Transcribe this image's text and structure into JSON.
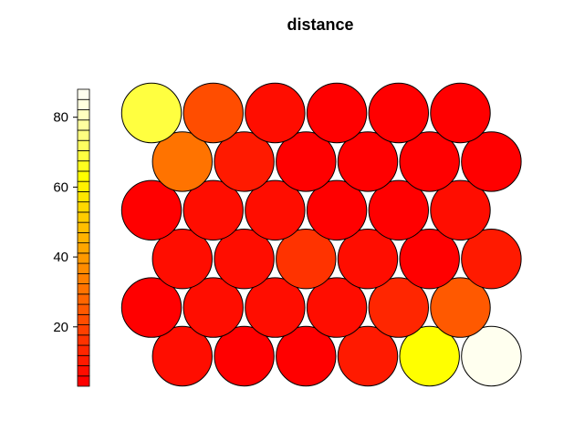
{
  "chart_data": {
    "type": "heatmap",
    "subtype": "som-hexagonal-property-map",
    "title": "distance",
    "xlabel": "",
    "ylabel": "",
    "grid": {
      "columns": 6,
      "rows": 6,
      "topology": "hexagonal"
    },
    "legend": {
      "placement": "left",
      "kind": "color-key",
      "range": [
        3,
        88
      ],
      "ticks": [
        20,
        40,
        60,
        80
      ],
      "tick_labels": [
        "20",
        "40",
        "60",
        "80"
      ],
      "colors": [
        "#FF0000",
        "#FF0D00",
        "#FF1A00",
        "#FF2600",
        "#FF3300",
        "#FF4000",
        "#FF4D00",
        "#FF5900",
        "#FF6600",
        "#FF7300",
        "#FF8000",
        "#FF8C00",
        "#FF9900",
        "#FFA600",
        "#FFB300",
        "#FFBF00",
        "#FFCC00",
        "#FFD900",
        "#FFE600",
        "#FFF200",
        "#FFFF00",
        "#FFFF20",
        "#FFFF40",
        "#FFFF60",
        "#FFFF80",
        "#FFFF9F",
        "#FFFFBF",
        "#FFFFDF",
        "#FFFFEF"
      ]
    },
    "cells": [
      {
        "row": 1,
        "col": 1,
        "value": 8
      },
      {
        "row": 1,
        "col": 2,
        "value": 5
      },
      {
        "row": 1,
        "col": 3,
        "value": 5
      },
      {
        "row": 1,
        "col": 4,
        "value": 10
      },
      {
        "row": 1,
        "col": 5,
        "value": 64
      },
      {
        "row": 1,
        "col": 6,
        "value": 88
      },
      {
        "row": 2,
        "col": 1,
        "value": 5
      },
      {
        "row": 2,
        "col": 2,
        "value": 6
      },
      {
        "row": 2,
        "col": 3,
        "value": 6
      },
      {
        "row": 2,
        "col": 4,
        "value": 8
      },
      {
        "row": 2,
        "col": 5,
        "value": 12
      },
      {
        "row": 2,
        "col": 6,
        "value": 24
      },
      {
        "row": 3,
        "col": 1,
        "value": 8
      },
      {
        "row": 3,
        "col": 2,
        "value": 8
      },
      {
        "row": 3,
        "col": 3,
        "value": 15
      },
      {
        "row": 3,
        "col": 4,
        "value": 6
      },
      {
        "row": 3,
        "col": 5,
        "value": 5
      },
      {
        "row": 3,
        "col": 6,
        "value": 10
      },
      {
        "row": 4,
        "col": 1,
        "value": 5
      },
      {
        "row": 4,
        "col": 2,
        "value": 7
      },
      {
        "row": 4,
        "col": 3,
        "value": 7
      },
      {
        "row": 4,
        "col": 4,
        "value": 4
      },
      {
        "row": 4,
        "col": 5,
        "value": 4
      },
      {
        "row": 4,
        "col": 6,
        "value": 7
      },
      {
        "row": 5,
        "col": 1,
        "value": 30
      },
      {
        "row": 5,
        "col": 2,
        "value": 11
      },
      {
        "row": 5,
        "col": 3,
        "value": 4
      },
      {
        "row": 5,
        "col": 4,
        "value": 3
      },
      {
        "row": 5,
        "col": 5,
        "value": 3
      },
      {
        "row": 5,
        "col": 6,
        "value": 3
      },
      {
        "row": 6,
        "col": 1,
        "value": 70
      },
      {
        "row": 6,
        "col": 2,
        "value": 22
      },
      {
        "row": 6,
        "col": 3,
        "value": 6
      },
      {
        "row": 6,
        "col": 4,
        "value": 3
      },
      {
        "row": 6,
        "col": 5,
        "value": 3
      },
      {
        "row": 6,
        "col": 6,
        "value": 3
      }
    ]
  }
}
